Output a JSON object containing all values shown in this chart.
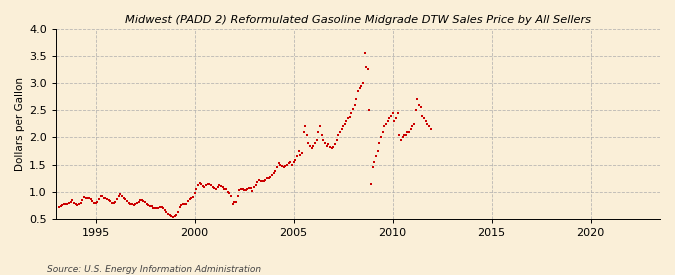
{
  "title": "Midwest (PADD 2) Reformulated Gasoline Midgrade DTW Sales Price by All Sellers",
  "ylabel": "Dollars per Gallon",
  "source": "Source: U.S. Energy Information Administration",
  "background_color": "#faefd8",
  "marker_color": "#cc0000",
  "xlim": [
    1993.0,
    2023.5
  ],
  "ylim": [
    0.5,
    4.0
  ],
  "xticks": [
    1995,
    2000,
    2005,
    2010,
    2015,
    2020
  ],
  "yticks": [
    0.5,
    1.0,
    1.5,
    2.0,
    2.5,
    3.0,
    3.5,
    4.0
  ],
  "data": [
    [
      1993.17,
      0.72
    ],
    [
      1993.25,
      0.74
    ],
    [
      1993.33,
      0.76
    ],
    [
      1993.42,
      0.77
    ],
    [
      1993.5,
      0.77
    ],
    [
      1993.58,
      0.78
    ],
    [
      1993.67,
      0.8
    ],
    [
      1993.75,
      0.82
    ],
    [
      1993.83,
      0.84
    ],
    [
      1993.92,
      0.8
    ],
    [
      1994.0,
      0.77
    ],
    [
      1994.08,
      0.76
    ],
    [
      1994.17,
      0.77
    ],
    [
      1994.25,
      0.79
    ],
    [
      1994.33,
      0.84
    ],
    [
      1994.42,
      0.9
    ],
    [
      1994.5,
      0.89
    ],
    [
      1994.58,
      0.88
    ],
    [
      1994.67,
      0.88
    ],
    [
      1994.75,
      0.86
    ],
    [
      1994.83,
      0.83
    ],
    [
      1994.92,
      0.8
    ],
    [
      1995.0,
      0.8
    ],
    [
      1995.08,
      0.82
    ],
    [
      1995.17,
      0.87
    ],
    [
      1995.25,
      0.93
    ],
    [
      1995.33,
      0.92
    ],
    [
      1995.42,
      0.89
    ],
    [
      1995.5,
      0.88
    ],
    [
      1995.58,
      0.86
    ],
    [
      1995.67,
      0.84
    ],
    [
      1995.75,
      0.83
    ],
    [
      1995.83,
      0.8
    ],
    [
      1995.92,
      0.79
    ],
    [
      1996.0,
      0.82
    ],
    [
      1996.08,
      0.87
    ],
    [
      1996.17,
      0.93
    ],
    [
      1996.25,
      0.95
    ],
    [
      1996.33,
      0.92
    ],
    [
      1996.42,
      0.89
    ],
    [
      1996.5,
      0.86
    ],
    [
      1996.58,
      0.83
    ],
    [
      1996.67,
      0.8
    ],
    [
      1996.75,
      0.78
    ],
    [
      1996.83,
      0.77
    ],
    [
      1996.92,
      0.76
    ],
    [
      1997.0,
      0.77
    ],
    [
      1997.08,
      0.8
    ],
    [
      1997.17,
      0.82
    ],
    [
      1997.25,
      0.85
    ],
    [
      1997.33,
      0.84
    ],
    [
      1997.42,
      0.83
    ],
    [
      1997.5,
      0.81
    ],
    [
      1997.58,
      0.78
    ],
    [
      1997.67,
      0.76
    ],
    [
      1997.75,
      0.74
    ],
    [
      1997.83,
      0.73
    ],
    [
      1997.92,
      0.71
    ],
    [
      1998.0,
      0.7
    ],
    [
      1998.08,
      0.7
    ],
    [
      1998.17,
      0.7
    ],
    [
      1998.25,
      0.72
    ],
    [
      1998.33,
      0.72
    ],
    [
      1998.42,
      0.7
    ],
    [
      1998.5,
      0.67
    ],
    [
      1998.58,
      0.63
    ],
    [
      1998.67,
      0.6
    ],
    [
      1998.75,
      0.57
    ],
    [
      1998.83,
      0.55
    ],
    [
      1998.92,
      0.54
    ],
    [
      1999.0,
      0.55
    ],
    [
      1999.08,
      0.57
    ],
    [
      1999.17,
      0.63
    ],
    [
      1999.25,
      0.72
    ],
    [
      1999.33,
      0.75
    ],
    [
      1999.42,
      0.77
    ],
    [
      1999.5,
      0.78
    ],
    [
      1999.58,
      0.78
    ],
    [
      1999.67,
      0.83
    ],
    [
      1999.75,
      0.86
    ],
    [
      1999.83,
      0.88
    ],
    [
      1999.92,
      0.9
    ],
    [
      2000.0,
      0.97
    ],
    [
      2000.08,
      1.06
    ],
    [
      2000.17,
      1.13
    ],
    [
      2000.25,
      1.16
    ],
    [
      2000.33,
      1.14
    ],
    [
      2000.42,
      1.1
    ],
    [
      2000.5,
      1.09
    ],
    [
      2000.58,
      1.12
    ],
    [
      2000.67,
      1.14
    ],
    [
      2000.75,
      1.15
    ],
    [
      2000.83,
      1.12
    ],
    [
      2000.92,
      1.08
    ],
    [
      2001.0,
      1.07
    ],
    [
      2001.08,
      1.05
    ],
    [
      2001.17,
      1.08
    ],
    [
      2001.25,
      1.12
    ],
    [
      2001.33,
      1.1
    ],
    [
      2001.42,
      1.08
    ],
    [
      2001.5,
      1.05
    ],
    [
      2001.58,
      1.05
    ],
    [
      2001.67,
      1.0
    ],
    [
      2001.75,
      0.97
    ],
    [
      2001.83,
      0.93
    ],
    [
      2001.92,
      0.78
    ],
    [
      2002.0,
      0.82
    ],
    [
      2002.08,
      0.82
    ],
    [
      2002.17,
      0.93
    ],
    [
      2002.25,
      1.04
    ],
    [
      2002.33,
      1.06
    ],
    [
      2002.42,
      1.05
    ],
    [
      2002.5,
      1.03
    ],
    [
      2002.58,
      1.03
    ],
    [
      2002.67,
      1.05
    ],
    [
      2002.75,
      1.07
    ],
    [
      2002.83,
      1.07
    ],
    [
      2002.92,
      1.02
    ],
    [
      2003.0,
      1.08
    ],
    [
      2003.08,
      1.12
    ],
    [
      2003.17,
      1.18
    ],
    [
      2003.25,
      1.22
    ],
    [
      2003.33,
      1.2
    ],
    [
      2003.42,
      1.2
    ],
    [
      2003.5,
      1.2
    ],
    [
      2003.58,
      1.22
    ],
    [
      2003.67,
      1.25
    ],
    [
      2003.75,
      1.25
    ],
    [
      2003.83,
      1.28
    ],
    [
      2003.92,
      1.3
    ],
    [
      2004.0,
      1.35
    ],
    [
      2004.08,
      1.38
    ],
    [
      2004.17,
      1.45
    ],
    [
      2004.25,
      1.52
    ],
    [
      2004.33,
      1.5
    ],
    [
      2004.42,
      1.48
    ],
    [
      2004.5,
      1.45
    ],
    [
      2004.58,
      1.48
    ],
    [
      2004.67,
      1.5
    ],
    [
      2004.75,
      1.52
    ],
    [
      2004.83,
      1.55
    ],
    [
      2004.92,
      1.5
    ],
    [
      2005.0,
      1.55
    ],
    [
      2005.08,
      1.58
    ],
    [
      2005.17,
      1.65
    ],
    [
      2005.25,
      1.75
    ],
    [
      2005.33,
      1.68
    ],
    [
      2005.42,
      1.72
    ],
    [
      2005.5,
      2.1
    ],
    [
      2005.58,
      2.2
    ],
    [
      2005.67,
      2.05
    ],
    [
      2005.75,
      1.9
    ],
    [
      2005.83,
      1.85
    ],
    [
      2005.92,
      1.8
    ],
    [
      2006.0,
      1.85
    ],
    [
      2006.08,
      1.9
    ],
    [
      2006.17,
      1.95
    ],
    [
      2006.25,
      2.1
    ],
    [
      2006.33,
      2.2
    ],
    [
      2006.42,
      2.05
    ],
    [
      2006.5,
      1.95
    ],
    [
      2006.58,
      1.9
    ],
    [
      2006.67,
      1.85
    ],
    [
      2006.75,
      1.88
    ],
    [
      2006.83,
      1.82
    ],
    [
      2006.92,
      1.8
    ],
    [
      2007.0,
      1.83
    ],
    [
      2007.08,
      1.87
    ],
    [
      2007.17,
      1.95
    ],
    [
      2007.25,
      2.05
    ],
    [
      2007.33,
      2.1
    ],
    [
      2007.42,
      2.15
    ],
    [
      2007.5,
      2.2
    ],
    [
      2007.58,
      2.25
    ],
    [
      2007.67,
      2.3
    ],
    [
      2007.75,
      2.35
    ],
    [
      2007.83,
      2.38
    ],
    [
      2007.92,
      2.45
    ],
    [
      2008.0,
      2.52
    ],
    [
      2008.08,
      2.6
    ],
    [
      2008.17,
      2.7
    ],
    [
      2008.25,
      2.85
    ],
    [
      2008.33,
      2.9
    ],
    [
      2008.42,
      2.95
    ],
    [
      2008.5,
      3.0
    ],
    [
      2008.58,
      3.55
    ],
    [
      2008.67,
      3.3
    ],
    [
      2008.75,
      3.25
    ],
    [
      2008.83,
      2.5
    ],
    [
      2008.92,
      1.15
    ],
    [
      2009.0,
      1.45
    ],
    [
      2009.08,
      1.55
    ],
    [
      2009.17,
      1.65
    ],
    [
      2009.25,
      1.75
    ],
    [
      2009.33,
      1.9
    ],
    [
      2009.42,
      2.0
    ],
    [
      2009.5,
      2.1
    ],
    [
      2009.58,
      2.2
    ],
    [
      2009.67,
      2.25
    ],
    [
      2009.75,
      2.3
    ],
    [
      2009.83,
      2.35
    ],
    [
      2009.92,
      2.4
    ],
    [
      2010.0,
      2.45
    ],
    [
      2010.08,
      2.3
    ],
    [
      2010.17,
      2.35
    ],
    [
      2010.25,
      2.45
    ],
    [
      2010.33,
      2.05
    ],
    [
      2010.42,
      1.95
    ],
    [
      2010.5,
      2.0
    ],
    [
      2010.58,
      2.05
    ],
    [
      2010.67,
      2.05
    ],
    [
      2010.75,
      2.1
    ],
    [
      2010.83,
      2.1
    ],
    [
      2010.92,
      2.15
    ],
    [
      2011.0,
      2.2
    ],
    [
      2011.08,
      2.25
    ],
    [
      2011.17,
      2.5
    ],
    [
      2011.25,
      2.7
    ],
    [
      2011.33,
      2.6
    ],
    [
      2011.42,
      2.55
    ],
    [
      2011.5,
      2.4
    ],
    [
      2011.58,
      2.35
    ],
    [
      2011.67,
      2.3
    ],
    [
      2011.75,
      2.25
    ],
    [
      2011.83,
      2.2
    ],
    [
      2011.92,
      2.15
    ]
  ]
}
